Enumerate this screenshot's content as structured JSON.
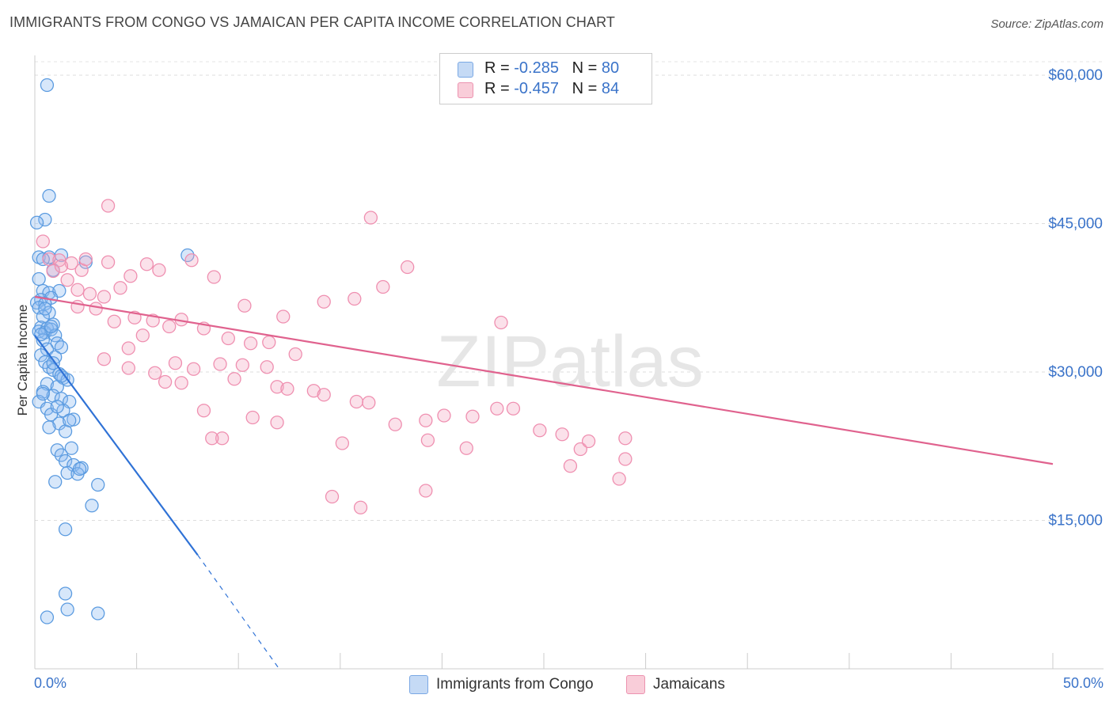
{
  "title": "IMMIGRANTS FROM CONGO VS JAMAICAN PER CAPITA INCOME CORRELATION CHART",
  "source": "Source: ZipAtlas.com",
  "colors": {
    "blue": "#5b9be0",
    "blue_line": "#2f72d6",
    "pink": "#ef8fb0",
    "pink_line": "#e0628e",
    "axis_text": "#3a73c9"
  },
  "legend": {
    "rows": [
      {
        "r_label": "R = ",
        "r_value": "-0.285",
        "n_label": "N = ",
        "n_value": "80"
      },
      {
        "r_label": "R = ",
        "r_value": "-0.457",
        "n_label": "N = ",
        "n_value": "84"
      }
    ]
  },
  "bottom_legend": {
    "series1": "Immigrants from Congo",
    "series2": "Jamaicans"
  },
  "chart_data": {
    "type": "scatter",
    "title": "IMMIGRANTS FROM CONGO VS JAMAICAN PER CAPITA INCOME CORRELATION CHART",
    "xlabel": "",
    "ylabel": "Per Capita Income",
    "xlim": [
      0,
      50
    ],
    "ylim": [
      0,
      62000
    ],
    "x_tick_labels": [
      "0.0%",
      "50.0%"
    ],
    "y_ticks": [
      15000,
      30000,
      45000,
      60000
    ],
    "y_tick_labels": [
      "$15,000",
      "$30,000",
      "$45,000",
      "$60,000"
    ],
    "watermark": "ZIPatlas",
    "series": [
      {
        "name": "Immigrants from Congo",
        "R": -0.285,
        "N": 80,
        "trend": {
          "x0": 0.0,
          "y0": 33700,
          "x1": 8.0,
          "y1": 11500,
          "dashed_to_x": 12.0,
          "dashed_to_y": 0
        },
        "points": [
          [
            0.6,
            59000
          ],
          [
            0.7,
            47800
          ],
          [
            0.5,
            45400
          ],
          [
            0.1,
            45100
          ],
          [
            0.2,
            41600
          ],
          [
            0.7,
            41600
          ],
          [
            0.4,
            41400
          ],
          [
            1.3,
            41800
          ],
          [
            2.5,
            41100
          ],
          [
            7.5,
            41800
          ],
          [
            0.9,
            40300
          ],
          [
            0.2,
            39400
          ],
          [
            0.4,
            38200
          ],
          [
            0.7,
            38000
          ],
          [
            1.2,
            38200
          ],
          [
            0.3,
            37300
          ],
          [
            0.8,
            37500
          ],
          [
            0.1,
            37000
          ],
          [
            0.5,
            36900
          ],
          [
            0.2,
            36500
          ],
          [
            0.7,
            36000
          ],
          [
            0.4,
            35600
          ],
          [
            0.9,
            34800
          ],
          [
            0.3,
            34500
          ],
          [
            0.6,
            34400
          ],
          [
            0.2,
            34100
          ],
          [
            0.5,
            34000
          ],
          [
            0.8,
            34300
          ],
          [
            1.0,
            33700
          ],
          [
            0.4,
            33200
          ],
          [
            1.1,
            32900
          ],
          [
            1.3,
            32500
          ],
          [
            0.6,
            32300
          ],
          [
            0.3,
            31700
          ],
          [
            1.0,
            31500
          ],
          [
            0.5,
            31000
          ],
          [
            0.7,
            30500
          ],
          [
            0.9,
            30200
          ],
          [
            1.2,
            29800
          ],
          [
            1.4,
            29400
          ],
          [
            1.6,
            29200
          ],
          [
            0.6,
            28800
          ],
          [
            1.1,
            28500
          ],
          [
            0.4,
            28000
          ],
          [
            0.9,
            27600
          ],
          [
            1.3,
            27300
          ],
          [
            0.2,
            27000
          ],
          [
            1.7,
            27000
          ],
          [
            0.6,
            26300
          ],
          [
            1.4,
            26100
          ],
          [
            0.8,
            25700
          ],
          [
            1.9,
            25200
          ],
          [
            1.2,
            24800
          ],
          [
            0.7,
            24400
          ],
          [
            1.5,
            24000
          ],
          [
            1.8,
            22300
          ],
          [
            1.1,
            22100
          ],
          [
            1.3,
            21600
          ],
          [
            1.5,
            21000
          ],
          [
            1.9,
            20600
          ],
          [
            2.3,
            20300
          ],
          [
            1.6,
            19800
          ],
          [
            2.1,
            19700
          ],
          [
            1.0,
            18900
          ],
          [
            3.1,
            18600
          ],
          [
            2.8,
            16500
          ],
          [
            1.5,
            14100
          ],
          [
            1.5,
            7600
          ],
          [
            1.6,
            6000
          ],
          [
            0.6,
            5200
          ],
          [
            3.1,
            5600
          ],
          [
            0.8,
            34600
          ],
          [
            1.3,
            29600
          ],
          [
            2.2,
            20200
          ],
          [
            0.5,
            36400
          ],
          [
            0.3,
            33800
          ],
          [
            1.7,
            25100
          ],
          [
            0.9,
            30900
          ],
          [
            1.1,
            26500
          ],
          [
            0.4,
            27800
          ]
        ]
      },
      {
        "name": "Jamaicans",
        "R": -0.457,
        "N": 84,
        "trend": {
          "x0": 0.0,
          "y0": 37600,
          "x1": 50.0,
          "y1": 20700
        },
        "points": [
          [
            0.4,
            43200
          ],
          [
            0.7,
            41400
          ],
          [
            1.2,
            41300
          ],
          [
            1.8,
            41000
          ],
          [
            2.3,
            40300
          ],
          [
            0.9,
            40200
          ],
          [
            1.6,
            39300
          ],
          [
            2.1,
            38300
          ],
          [
            2.7,
            37900
          ],
          [
            3.4,
            37600
          ],
          [
            4.2,
            38500
          ],
          [
            1.3,
            40700
          ],
          [
            2.5,
            41400
          ],
          [
            3.6,
            41100
          ],
          [
            4.7,
            39700
          ],
          [
            5.5,
            40900
          ],
          [
            6.1,
            40300
          ],
          [
            7.7,
            41300
          ],
          [
            8.8,
            39600
          ],
          [
            10.3,
            36700
          ],
          [
            12.2,
            35600
          ],
          [
            14.2,
            37100
          ],
          [
            15.7,
            37400
          ],
          [
            17.1,
            38600
          ],
          [
            18.3,
            40600
          ],
          [
            16.5,
            45600
          ],
          [
            3.6,
            46800
          ],
          [
            2.1,
            36600
          ],
          [
            3.0,
            36400
          ],
          [
            3.9,
            35100
          ],
          [
            4.9,
            35500
          ],
          [
            5.8,
            35200
          ],
          [
            6.6,
            34600
          ],
          [
            7.2,
            35300
          ],
          [
            8.3,
            34400
          ],
          [
            9.5,
            33400
          ],
          [
            10.6,
            32900
          ],
          [
            11.5,
            33000
          ],
          [
            12.8,
            31800
          ],
          [
            5.3,
            33700
          ],
          [
            4.6,
            32400
          ],
          [
            3.4,
            31300
          ],
          [
            6.9,
            30900
          ],
          [
            7.8,
            30300
          ],
          [
            9.1,
            30800
          ],
          [
            10.2,
            30700
          ],
          [
            11.4,
            30500
          ],
          [
            4.6,
            30400
          ],
          [
            5.9,
            29900
          ],
          [
            6.4,
            29000
          ],
          [
            7.2,
            28900
          ],
          [
            9.8,
            29300
          ],
          [
            11.9,
            28500
          ],
          [
            12.4,
            28300
          ],
          [
            13.7,
            28100
          ],
          [
            14.2,
            27700
          ],
          [
            15.8,
            27000
          ],
          [
            16.4,
            26900
          ],
          [
            8.3,
            26100
          ],
          [
            10.7,
            25400
          ],
          [
            11.9,
            24900
          ],
          [
            17.7,
            24700
          ],
          [
            19.2,
            25100
          ],
          [
            20.1,
            25600
          ],
          [
            21.5,
            25500
          ],
          [
            22.7,
            26300
          ],
          [
            23.5,
            26300
          ],
          [
            24.8,
            24100
          ],
          [
            25.9,
            23700
          ],
          [
            9.2,
            23300
          ],
          [
            8.7,
            23300
          ],
          [
            15.1,
            22800
          ],
          [
            19.3,
            23100
          ],
          [
            21.2,
            22300
          ],
          [
            26.8,
            22200
          ],
          [
            29.0,
            21200
          ],
          [
            26.3,
            20500
          ],
          [
            29.0,
            23300
          ],
          [
            27.2,
            23000
          ],
          [
            28.7,
            19200
          ],
          [
            14.6,
            17400
          ],
          [
            16.0,
            16300
          ],
          [
            19.2,
            18000
          ],
          [
            22.9,
            35000
          ]
        ]
      }
    ]
  }
}
